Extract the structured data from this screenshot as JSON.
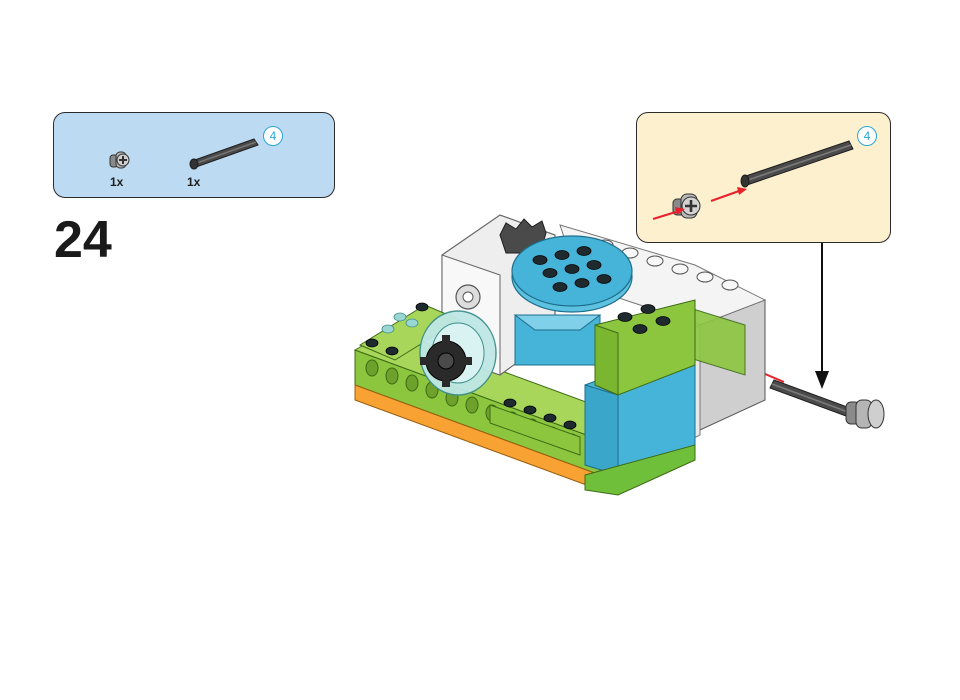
{
  "parts_list": {
    "items": [
      {
        "name": "bush",
        "quantity_label": "1x"
      },
      {
        "name": "axle",
        "quantity_label": "1x",
        "length_label": "4"
      }
    ]
  },
  "step": {
    "number": "24"
  },
  "callout": {
    "axle_length_label": "4"
  },
  "colors": {
    "parts_box_bg": "#bcdaf2",
    "callout_bg": "#fdf0cf",
    "badge_accent": "#2aa7d8",
    "arrow_red": "#e8202a",
    "lime": "#8cc63f",
    "azure": "#46b4d8",
    "orange": "#f7a233",
    "white": "#f4f4f4",
    "gray": "#7a7a7a"
  },
  "icons": [
    "bush-icon",
    "axle-icon",
    "red-arrow-icon",
    "black-arrow-icon"
  ]
}
